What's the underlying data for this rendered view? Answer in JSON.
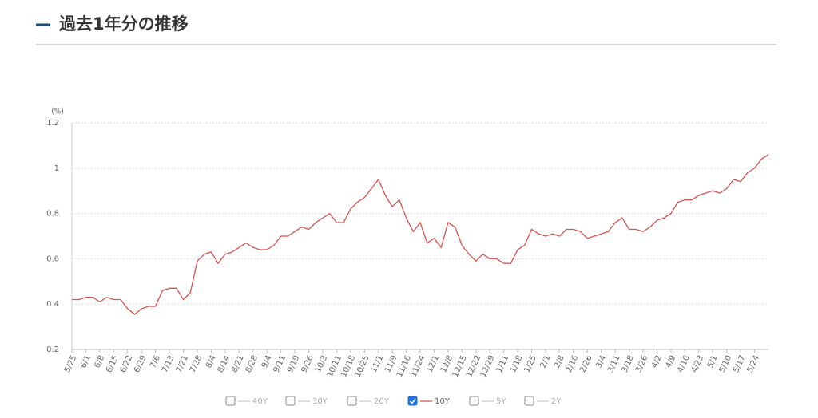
{
  "chart_data": {
    "type": "line",
    "title": "過去1年分の推移",
    "y_unit": "(%)",
    "categories": [
      "5/25",
      null,
      "6/1",
      null,
      "6/8",
      null,
      "6/15",
      null,
      "6/22",
      null,
      "6/29",
      null,
      "7/6",
      null,
      "7/13",
      null,
      "7/21",
      null,
      "7/28",
      null,
      "8/4",
      null,
      "8/14",
      null,
      "8/21",
      null,
      "8/28",
      null,
      "9/4",
      null,
      "9/11",
      null,
      "9/19",
      null,
      "9/26",
      null,
      "10/3",
      null,
      "10/11",
      null,
      "10/18",
      null,
      "10/25",
      null,
      "11/1",
      null,
      "11/9",
      null,
      "11/16",
      null,
      "11/24",
      null,
      "12/1",
      null,
      "12/8",
      null,
      "12/15",
      null,
      "12/22",
      null,
      "12/29",
      null,
      "1/11",
      null,
      "1/18",
      null,
      "1/25",
      null,
      "2/1",
      null,
      "2/8",
      null,
      "2/16",
      null,
      "2/26",
      null,
      "3/4",
      null,
      "3/11",
      null,
      "3/18",
      null,
      "3/26",
      null,
      "4/2",
      null,
      "4/9",
      null,
      "4/16",
      null,
      "4/23",
      null,
      "5/1",
      null,
      "5/10",
      null,
      "5/17",
      null,
      "5/24",
      null,
      null
    ],
    "series": [
      {
        "name": "40Y",
        "checked": false
      },
      {
        "name": "30Y",
        "checked": false
      },
      {
        "name": "20Y",
        "checked": false
      },
      {
        "name": "10Y",
        "checked": true,
        "color": "#d9534f",
        "values": [
          0.42,
          0.42,
          0.43,
          0.43,
          0.41,
          0.43,
          0.42,
          0.42,
          0.38,
          0.355,
          0.38,
          0.39,
          0.39,
          0.46,
          0.47,
          0.47,
          0.42,
          0.45,
          0.59,
          0.62,
          0.63,
          0.58,
          0.62,
          0.63,
          0.65,
          0.67,
          0.65,
          0.64,
          0.64,
          0.66,
          0.7,
          0.7,
          0.72,
          0.74,
          0.73,
          0.76,
          0.78,
          0.8,
          0.76,
          0.76,
          0.82,
          0.85,
          0.87,
          0.91,
          0.95,
          0.88,
          0.83,
          0.86,
          0.78,
          0.72,
          0.76,
          0.67,
          0.69,
          0.65,
          0.76,
          0.74,
          0.66,
          0.62,
          0.59,
          0.62,
          0.6,
          0.6,
          0.58,
          0.58,
          0.64,
          0.66,
          0.73,
          0.71,
          0.7,
          0.71,
          0.7,
          0.73,
          0.73,
          0.72,
          0.69,
          0.7,
          0.71,
          0.72,
          0.76,
          0.78,
          0.73,
          0.73,
          0.72,
          0.74,
          0.77,
          0.78,
          0.8,
          0.85,
          0.86,
          0.86,
          0.88,
          0.89,
          0.9,
          0.89,
          0.91,
          0.95,
          0.94,
          0.98,
          1.0,
          1.04,
          1.06
        ]
      },
      {
        "name": "5Y",
        "checked": false
      },
      {
        "name": "2Y",
        "checked": false
      }
    ],
    "ylim": [
      0.2,
      1.2
    ],
    "yticks": [
      0.2,
      0.4,
      0.6,
      0.8,
      1,
      1.2
    ],
    "grid": true
  }
}
